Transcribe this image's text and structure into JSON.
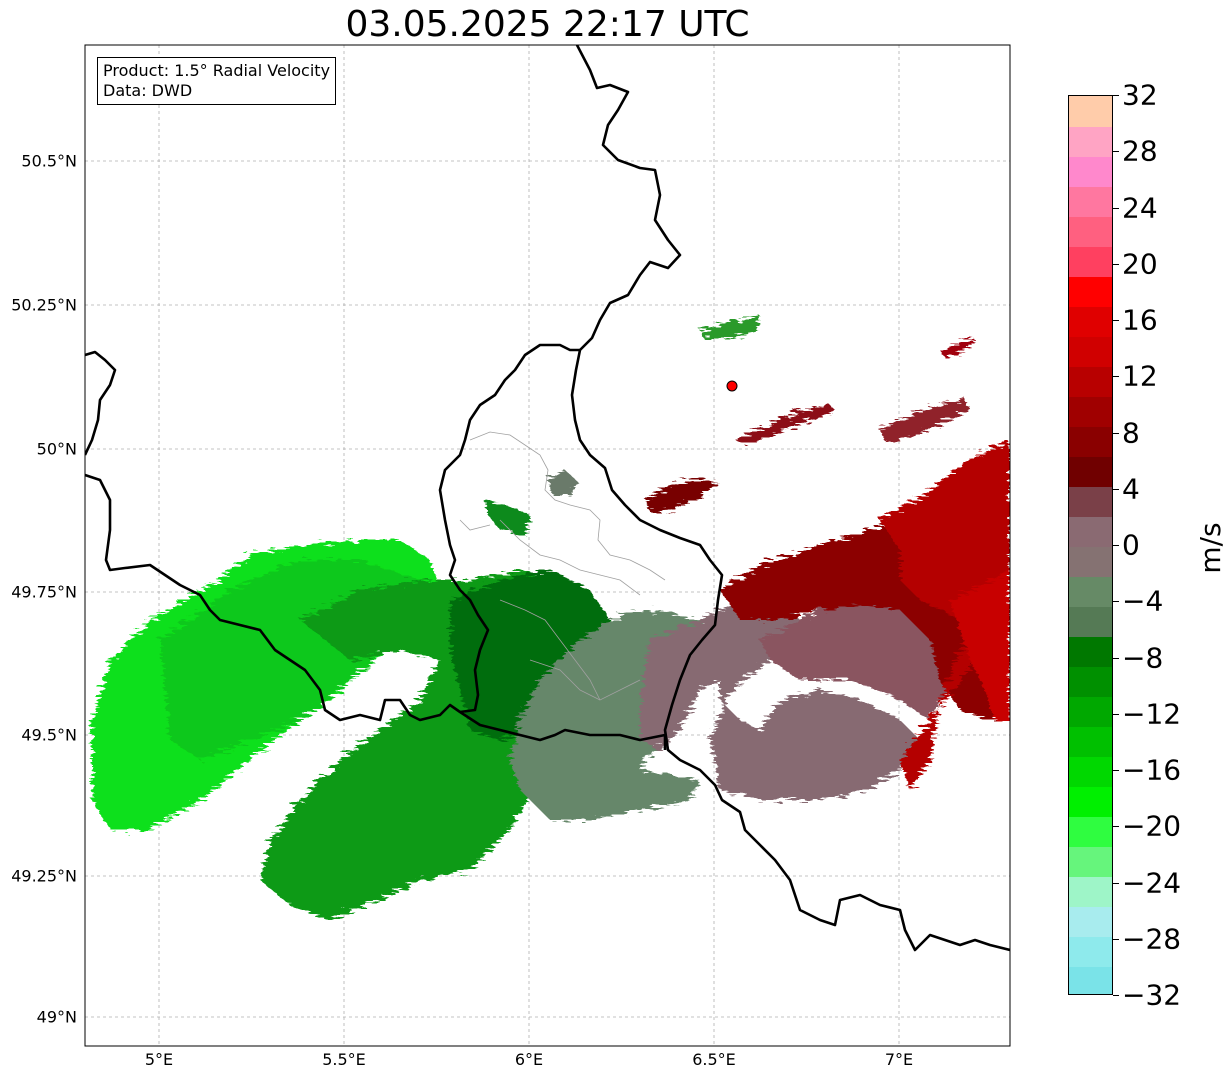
{
  "title": "03.05.2025 22:17 UTC",
  "info": {
    "product": "Product: 1.5° Radial Velocity",
    "data": "Data: DWD"
  },
  "lat_labels": [
    {
      "value": 50.5,
      "text": "50.5°N"
    },
    {
      "value": 50.25,
      "text": "50.25°N"
    },
    {
      "value": 50.0,
      "text": "50°N"
    },
    {
      "value": 49.75,
      "text": "49.75°N"
    },
    {
      "value": 49.5,
      "text": "49.5°N"
    },
    {
      "value": 49.25,
      "text": "49.25°N"
    },
    {
      "value": 49.0,
      "text": "49°N"
    }
  ],
  "lon_labels": [
    {
      "value": 5.0,
      "text": "5°E"
    },
    {
      "value": 5.5,
      "text": "5.5°E"
    },
    {
      "value": 6.0,
      "text": "6°E"
    },
    {
      "value": 6.5,
      "text": "6.5°E"
    },
    {
      "value": 7.0,
      "text": "7°E"
    }
  ],
  "extent": {
    "lon_min": 4.8,
    "lon_max": 7.3,
    "lat_min": 48.95,
    "lat_max": 50.7
  },
  "radar_site": {
    "lon": 6.548,
    "lat": 50.11,
    "color": "#ff0000"
  },
  "colorbar": {
    "unit": "m/s",
    "min": -32,
    "max": 32,
    "ticks": [
      "32",
      "28",
      "24",
      "20",
      "16",
      "12",
      "8",
      "4",
      "0",
      "−4",
      "−8",
      "−12",
      "−16",
      "−20",
      "−24",
      "−28",
      "−32"
    ],
    "colors": [
      "#7ae3e8",
      "#8eeaec",
      "#a8ecee",
      "#9ef5c8",
      "#66f57c",
      "#2ffd40",
      "#00f000",
      "#00d800",
      "#00c000",
      "#00a800",
      "#009000",
      "#007800",
      "#557a55",
      "#668a66",
      "#857272",
      "#8a6a72",
      "#7a4048",
      "#700000",
      "#8a0000",
      "#a00000",
      "#b80000",
      "#d00000",
      "#e00000",
      "#ff0000",
      "#ff4060",
      "#ff6080",
      "#ff77a0",
      "#ff88cc",
      "#ffa4c4",
      "#ffccaa"
    ]
  }
}
